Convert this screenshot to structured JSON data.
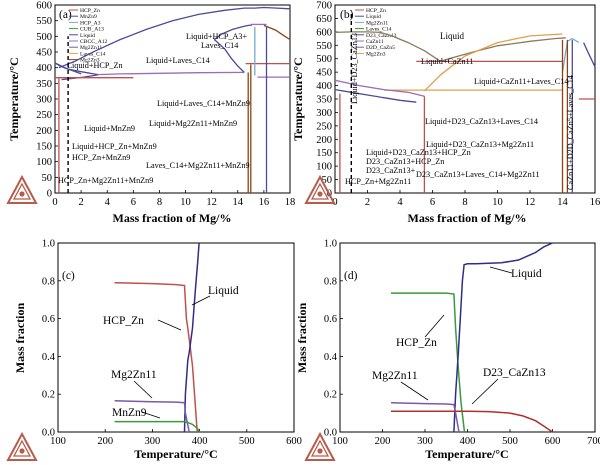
{
  "chart_data": [
    {
      "panel": "(a)",
      "type": "line",
      "xlabel": "Mass fraction of Mg/%",
      "ylabel": "Temperature/°C",
      "xlim": [
        0,
        18
      ],
      "ylim": [
        0,
        600
      ],
      "xticks": [
        0,
        2,
        4,
        6,
        8,
        10,
        12,
        14,
        16,
        18
      ],
      "yticks": [
        0,
        50,
        100,
        150,
        200,
        250,
        300,
        350,
        400,
        450,
        500,
        550,
        600
      ],
      "legend_position": "top-left",
      "legend": [
        "HCP_Zn",
        "MnZn9",
        "HCP_A3",
        "CUB_A13",
        "Liquid",
        "CBCC_A12",
        "Mg2Zn11",
        "Laves_C14",
        "Mg2Zn3"
      ],
      "annotations": [
        "Liquid+HCP_Zn",
        "Liquid+Laves_C14",
        "Liquid+HCP_A3+",
        "Laves_C14",
        "Liquid+Laves_C14+MnZn9",
        "Liquid+MnZn9",
        "Liquid+Mg2Zn11+MnZn9",
        "Liquid+HCP_Zn+MnZn9",
        "HCP_Zn+MnZn9",
        "Laves_C14+Mg2Zn11+MnZn9",
        "HCP_Zn+Mg2Zn11+MnZn9"
      ],
      "series": [
        {
          "color": "#4b4b9a",
          "x": [
            0.3,
            1.5,
            3.0,
            5.0,
            7.0,
            9.0,
            11.0,
            13.0,
            14.5,
            15.3,
            16.0,
            17.0,
            18.0
          ],
          "y": [
            400,
            420,
            452,
            490,
            522,
            550,
            570,
            583,
            590,
            590,
            592,
            590,
            588
          ]
        },
        {
          "color": "#4b4b9a",
          "x": [
            0,
            0.5,
            1.0,
            1.5,
            2.0
          ],
          "y": [
            415,
            405,
            395,
            388,
            380
          ]
        },
        {
          "color": "#4b4b9a",
          "x": [
            0,
            0.4,
            1.0,
            2.0,
            3.3
          ],
          "y": [
            415,
            405,
            395,
            387,
            378
          ]
        },
        {
          "color": "#4b4b9a",
          "x": [
            3.3,
            3.0,
            2.2,
            1.4,
            0.5
          ],
          "y": [
            378,
            375,
            370,
            366,
            362
          ]
        },
        {
          "color": "#9a6db5",
          "x": [
            3.3,
            5.0,
            8.0,
            11.0,
            14.5
          ],
          "y": [
            378,
            380,
            382,
            384,
            385
          ]
        },
        {
          "color": "#4b4b9a",
          "x": [
            14.5,
            14.0,
            13.5,
            13.0,
            12.2
          ],
          "y": [
            385,
            405,
            430,
            460,
            490
          ]
        },
        {
          "color": "#4b4b9a",
          "x": [
            12.2,
            12.8,
            13.6,
            14.3,
            14.8,
            15.1
          ],
          "y": [
            490,
            508,
            522,
            530,
            535,
            536
          ]
        },
        {
          "color": "#c0504d",
          "x": [
            0,
            6.0
          ],
          "y": [
            368,
            368
          ]
        },
        {
          "color": "#c0504d",
          "x": [
            14.6,
            18.0
          ],
          "y": [
            413,
            413
          ]
        },
        {
          "color": "#9a6db5",
          "x": [
            15.0,
            16.2
          ],
          "y": [
            538,
            538
          ]
        },
        {
          "color": "#7aa9c9",
          "x": [
            15.3,
            15.3
          ],
          "y": [
            375,
            530
          ]
        },
        {
          "color": "#8b4513",
          "x": [
            16.0,
            16.9,
            17.6,
            18.0
          ],
          "y": [
            535,
            520,
            500,
            490
          ]
        },
        {
          "color": "#9a6db5",
          "x": [
            15.5,
            18.0
          ],
          "y": [
            370,
            370
          ]
        },
        {
          "color": "#c0504d",
          "x": [
            0.3,
            0.3
          ],
          "y": [
            0,
            370
          ]
        },
        {
          "color": "#8b4513",
          "x": [
            14.8,
            14.8
          ],
          "y": [
            0,
            385
          ]
        },
        {
          "color": "#8b4513",
          "x": [
            15.0,
            15.0
          ],
          "y": [
            0,
            410
          ]
        },
        {
          "color": "#4b4b9a",
          "x": [
            16.2,
            16.2
          ],
          "y": [
            0,
            530
          ]
        },
        {
          "color": "#000000",
          "x": [
            1.0,
            1.0
          ],
          "y": [
            0,
            500
          ]
        }
      ]
    },
    {
      "panel": "(b)",
      "type": "line",
      "xlabel": "Mass fraction of Mg/%",
      "ylabel": "Temperature/°C",
      "xlim": [
        0,
        16
      ],
      "ylim": [
        0,
        700
      ],
      "xticks": [
        0,
        2,
        4,
        6,
        8,
        10,
        12,
        14,
        16
      ],
      "yticks": [
        0,
        50,
        100,
        150,
        200,
        250,
        300,
        350,
        400,
        450,
        500,
        550,
        600,
        650,
        700
      ],
      "legend_position": "top-left",
      "legend": [
        "HCP_Zn",
        "Liquid",
        "Mg2Zn11",
        "Laves_C14",
        "D23_CaZn13",
        "CaZn11",
        "D2D_CaZn5",
        "Mg2Zn3"
      ],
      "annotations": [
        "Liquid",
        "Liquid+D23_CaZn13",
        "Liquid+CaZn11",
        "Liquid+CaZn11+Laves_C14",
        "Liquid+D23_CaZn13+Laves_C14",
        "Liquid+D23_CaZn13+Mg2Zn11",
        "Liquid+D23_CaZn13+HCP_Zn",
        "D23_CaZn13+HCP_Zn",
        "D23_CaZn13+",
        "HCP_Zn+Mg2Zn11",
        "D23_CaZn13+Laves_C14+Mg2Zn11",
        "CaZn11+D2D_CaZn5+Laves_C14"
      ],
      "series": [
        {
          "color": "#8b7b5b",
          "x": [
            0,
            1.0,
            2.0,
            2.8,
            3.5,
            4.5,
            5.5,
            6.5
          ],
          "y": [
            598,
            600,
            600,
            598,
            585,
            560,
            530,
            490
          ]
        },
        {
          "color": "#8b7b5b",
          "x": [
            6.5,
            7.0,
            8.5,
            10.0,
            12.0,
            13.5,
            14.2
          ],
          "y": [
            490,
            500,
            525,
            548,
            565,
            575,
            578
          ]
        },
        {
          "color": "#e0a050",
          "x": [
            5.5,
            6.5,
            8.0,
            10.0,
            12.0,
            14.0
          ],
          "y": [
            380,
            440,
            510,
            560,
            585,
            592
          ]
        },
        {
          "color": "#c0504d",
          "x": [
            5.0,
            14.0
          ],
          "y": [
            490,
            490
          ]
        },
        {
          "color": "#e0a050",
          "x": [
            3.0,
            14.0
          ],
          "y": [
            383,
            383
          ]
        },
        {
          "color": "#7aa9c9",
          "x": [
            14.0,
            14.3,
            14.6,
            15.0
          ],
          "y": [
            450,
            565,
            575,
            560
          ]
        },
        {
          "color": "#9a6db5",
          "x": [
            0,
            1.5,
            3.0,
            4.5,
            5.5
          ],
          "y": [
            420,
            400,
            385,
            375,
            360
          ]
        },
        {
          "color": "#4b4b9a",
          "x": [
            0,
            1.0,
            2.0,
            3.0,
            4.0,
            5.0
          ],
          "y": [
            385,
            375,
            365,
            355,
            345,
            338
          ]
        },
        {
          "color": "#c0504d",
          "x": [
            0.3,
            0.3
          ],
          "y": [
            0,
            370
          ]
        },
        {
          "color": "#c0504d",
          "x": [
            5.5,
            5.5
          ],
          "y": [
            0,
            360
          ]
        },
        {
          "color": "#8b4513",
          "x": [
            14.0,
            14.0
          ],
          "y": [
            0,
            570
          ]
        },
        {
          "color": "#8b4513",
          "x": [
            14.3,
            14.3
          ],
          "y": [
            0,
            570
          ]
        },
        {
          "color": "#4b4b9a",
          "x": [
            14.6,
            14.6
          ],
          "y": [
            0,
            570
          ]
        },
        {
          "color": "#4b4b9a",
          "x": [
            15.3,
            15.6,
            16.0
          ],
          "y": [
            560,
            520,
            470
          ]
        },
        {
          "color": "#c0504d",
          "x": [
            15.0,
            16.0
          ],
          "y": [
            350,
            350
          ]
        },
        {
          "color": "#000000",
          "x": [
            1.0,
            1.0
          ],
          "y": [
            0,
            680
          ]
        }
      ]
    },
    {
      "panel": "(c)",
      "type": "line",
      "xlabel": "Temperature/°C",
      "ylabel": "Mass fraction",
      "xlim": [
        100,
        600
      ],
      "ylim": [
        0,
        1.0
      ],
      "xticks": [
        100,
        200,
        300,
        400,
        500,
        600
      ],
      "yticks": [
        0,
        0.2,
        0.4,
        0.6,
        0.8,
        1.0
      ],
      "annotations": [
        "Liquid",
        "HCP_Zn",
        "Mg2Zn11",
        "MnZn9"
      ],
      "series": [
        {
          "name": "HCP_Zn",
          "color": "#c0504d",
          "x": [
            220,
            300,
            350,
            368,
            372,
            375,
            380,
            385,
            395
          ],
          "y": [
            0.79,
            0.785,
            0.78,
            0.775,
            0.6,
            0.55,
            0.45,
            0.35,
            0.0
          ]
        },
        {
          "name": "Liquid",
          "color": "#2e2e8a",
          "x": [
            368,
            370,
            375,
            378,
            380,
            385,
            388,
            392,
            396,
            399
          ],
          "y": [
            0.0,
            0.2,
            0.38,
            0.42,
            0.46,
            0.55,
            0.65,
            0.78,
            0.9,
            1.0
          ]
        },
        {
          "name": "Mg2Zn11",
          "color": "#7b5aa6",
          "x": [
            220,
            300,
            350,
            368,
            370,
            378
          ],
          "y": [
            0.165,
            0.16,
            0.158,
            0.155,
            0.1,
            0.0
          ]
        },
        {
          "name": "MnZn9",
          "color": "#3a9a3a",
          "x": [
            220,
            300,
            350,
            368,
            375,
            385,
            395,
            400
          ],
          "y": [
            0.055,
            0.055,
            0.055,
            0.055,
            0.05,
            0.04,
            0.02,
            0.0
          ]
        }
      ]
    },
    {
      "panel": "(d)",
      "type": "line",
      "xlabel": "Temperature/°C",
      "ylabel": "Mass fraction",
      "xlim": [
        100,
        700
      ],
      "ylim": [
        0,
        1.0
      ],
      "xticks": [
        100,
        200,
        300,
        400,
        500,
        600,
        700
      ],
      "yticks": [
        0,
        0.2,
        0.4,
        0.6,
        0.8,
        1.0
      ],
      "annotations": [
        "Liquid",
        "HCP_Zn",
        "Mg2Zn11",
        "D23_CaZn13"
      ],
      "series": [
        {
          "name": "HCP_Zn",
          "color": "#3a9a3a",
          "x": [
            220,
            300,
            350,
            368,
            372,
            378,
            385,
            393
          ],
          "y": [
            0.735,
            0.735,
            0.735,
            0.73,
            0.55,
            0.35,
            0.15,
            0.0
          ]
        },
        {
          "name": "Liquid",
          "color": "#2e2e8a",
          "x": [
            368,
            372,
            378,
            383,
            388,
            392,
            400,
            420,
            480,
            520,
            560,
            580,
            600
          ],
          "y": [
            0.0,
            0.2,
            0.4,
            0.6,
            0.8,
            0.885,
            0.89,
            0.89,
            0.895,
            0.91,
            0.95,
            0.98,
            1.0
          ]
        },
        {
          "name": "Mg2Zn11",
          "color": "#7b5aa6",
          "x": [
            220,
            300,
            350,
            368,
            372,
            380
          ],
          "y": [
            0.155,
            0.15,
            0.148,
            0.145,
            0.1,
            0.0
          ]
        },
        {
          "name": "D23_CaZn13",
          "color": "#b03030",
          "x": [
            220,
            300,
            400,
            450,
            500,
            530,
            560,
            580,
            600
          ],
          "y": [
            0.11,
            0.11,
            0.11,
            0.108,
            0.1,
            0.085,
            0.06,
            0.03,
            0.0
          ]
        }
      ]
    }
  ]
}
